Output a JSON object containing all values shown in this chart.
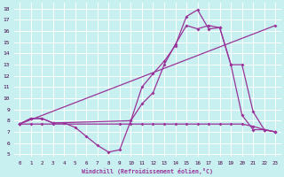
{
  "xlabel": "Windchill (Refroidissement éolien,°C)",
  "bg_color": "#c8f0f0",
  "grid_color": "#ffffff",
  "line_color": "#993399",
  "xlim": [
    -0.5,
    23.5
  ],
  "ylim": [
    4.8,
    18.5
  ],
  "xticks": [
    0,
    1,
    2,
    3,
    4,
    5,
    6,
    7,
    8,
    9,
    10,
    11,
    12,
    13,
    14,
    15,
    16,
    17,
    18,
    19,
    20,
    21,
    22,
    23
  ],
  "yticks": [
    5,
    6,
    7,
    8,
    9,
    10,
    11,
    12,
    13,
    14,
    15,
    16,
    17,
    18
  ],
  "line1_x": [
    0,
    1,
    2,
    3,
    4,
    5,
    6,
    7,
    8,
    9,
    10,
    11,
    12,
    13,
    14,
    15,
    16,
    17,
    18,
    19,
    20,
    21,
    22,
    23
  ],
  "line1_y": [
    7.7,
    8.2,
    8.2,
    7.8,
    7.8,
    7.4,
    6.6,
    5.8,
    5.2,
    5.4,
    8.0,
    11.0,
    12.2,
    13.3,
    14.7,
    17.3,
    17.9,
    16.2,
    16.3,
    13.0,
    8.5,
    7.2,
    7.2,
    7.0
  ],
  "line2_x": [
    0,
    1,
    2,
    3,
    10,
    11,
    12,
    13,
    14,
    15,
    16,
    17,
    18,
    19,
    20,
    21,
    22,
    23
  ],
  "line2_y": [
    7.7,
    8.2,
    8.2,
    7.8,
    8.0,
    9.5,
    10.5,
    13.0,
    14.8,
    16.5,
    16.2,
    16.5,
    16.3,
    13.0,
    13.0,
    8.8,
    7.2,
    7.0
  ],
  "line3_x": [
    0,
    1,
    2,
    3,
    9,
    10,
    11,
    12,
    13,
    14,
    15,
    16,
    17,
    18,
    19,
    20,
    21,
    22,
    23
  ],
  "line3_y": [
    7.7,
    7.7,
    7.7,
    7.7,
    7.7,
    7.7,
    7.7,
    7.7,
    7.7,
    7.7,
    7.7,
    7.7,
    7.7,
    7.7,
    7.7,
    7.7,
    7.5,
    7.2,
    7.0
  ],
  "line4_x": [
    0,
    23
  ],
  "line4_y": [
    7.7,
    16.5
  ]
}
